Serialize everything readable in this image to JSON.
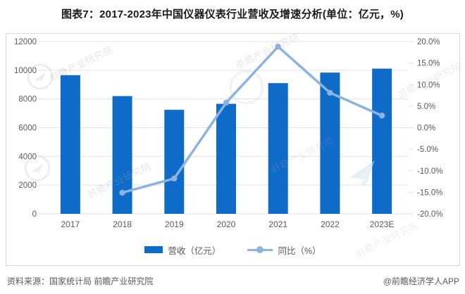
{
  "title": "图表7：2017-2023年中国仪器仪表行业营收及增速分析(单位：亿元，%)",
  "colors": {
    "bar": "#0f6bc8",
    "line": "#8db3e2",
    "grid": "#e3e3e3",
    "axis_text": "#595959",
    "panel_border": "#d8d8d8"
  },
  "chart_data": {
    "type": "bar+line",
    "title": "图表7：2017-2023年中国仪器仪表行业营收及增速分析(单位：亿元，%)",
    "categories": [
      "2017",
      "2018",
      "2019",
      "2020",
      "2021",
      "2022",
      "2023E"
    ],
    "series": [
      {
        "name": "营收（亿元）",
        "type": "bar",
        "axis": "left",
        "color": "#0f6bc8",
        "values": [
          9656,
          8200,
          7243,
          7660,
          9101,
          9835,
          10110
        ]
      },
      {
        "name": "同比（%）",
        "type": "line",
        "axis": "right",
        "color": "#8db3e2",
        "values": [
          null,
          -15.1,
          -11.8,
          5.8,
          18.8,
          8.1,
          2.8
        ]
      }
    ],
    "left_axis": {
      "min": 0,
      "max": 12000,
      "step": 2000,
      "tick_values": [
        12000,
        10000,
        8000,
        6000,
        4000,
        2000,
        0
      ],
      "tick_labels": [
        "12000",
        "10000",
        "8000",
        "6000",
        "4000",
        "2000",
        "0"
      ]
    },
    "right_axis": {
      "min": -20,
      "max": 20,
      "step": 5,
      "tick_values": [
        20,
        15,
        10,
        5,
        0,
        -5,
        -10,
        -15,
        -20
      ],
      "tick_labels": [
        "20.0%",
        "15.0%",
        "10.0%",
        "5.0%",
        "0.0%",
        "-5.0%",
        "-10.0%",
        "-15.0%",
        "-20.0%"
      ]
    },
    "grid": true,
    "legend_position": "bottom"
  },
  "legend": {
    "revenue_label": "营收（亿元）",
    "growth_label": "同比（%）"
  },
  "footer": {
    "source": "资料来源：国家统计局 前瞻产业研究院",
    "credit": "@前瞻经济学人APP"
  },
  "watermark": {
    "text": "前瞻产业研究院"
  }
}
